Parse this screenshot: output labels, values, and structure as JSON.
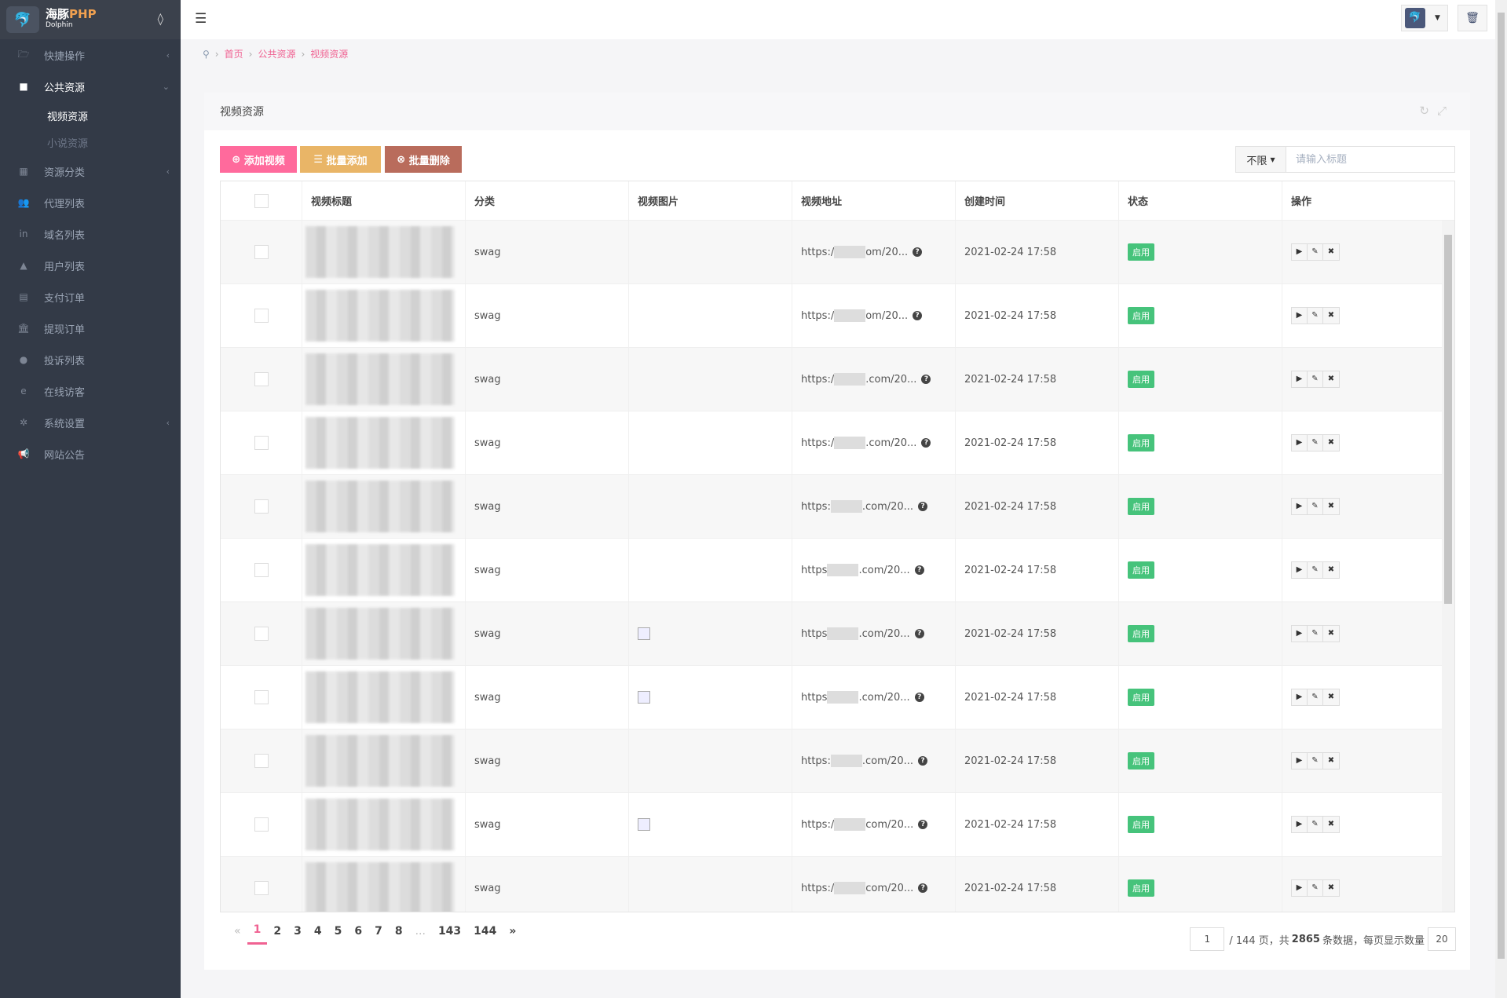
{
  "app": {
    "name": "海豚PHP",
    "sub": "Dolphin"
  },
  "sidebar": {
    "items": [
      {
        "label": "快捷操作",
        "icon": "folder-open-icon",
        "arrow": "‹"
      },
      {
        "label": "公共资源",
        "icon": "video-camera-icon",
        "arrow": "⌄",
        "open": true,
        "children": [
          {
            "label": "视频资源",
            "active": true
          },
          {
            "label": "小说资源"
          }
        ]
      },
      {
        "label": "资源分类",
        "icon": "grid-icon",
        "arrow": "‹"
      },
      {
        "label": "代理列表",
        "icon": "users-icon"
      },
      {
        "label": "域名列表",
        "icon": "linkedin-icon"
      },
      {
        "label": "用户列表",
        "icon": "user-icon"
      },
      {
        "label": "支付订单",
        "icon": "list-alt-icon"
      },
      {
        "label": "提现订单",
        "icon": "bank-icon"
      },
      {
        "label": "投诉列表",
        "icon": "exclamation-circle-icon"
      },
      {
        "label": "在线访客",
        "icon": "internet-explorer-icon"
      },
      {
        "label": "系统设置",
        "icon": "gear-icon",
        "arrow": "‹"
      },
      {
        "label": "网站公告",
        "icon": "bullhorn-icon"
      }
    ]
  },
  "breadcrumb": [
    "首页",
    "公共资源",
    "视频资源"
  ],
  "panel": {
    "title": "视频资源"
  },
  "toolbar": {
    "add": "添加视频",
    "batch_add": "批量添加",
    "batch_delete": "批量删除",
    "colors": {
      "add": "#ff6a9c",
      "batch_add": "#e9b567",
      "batch_delete": "#b96c5c"
    }
  },
  "filter": {
    "select": "不限",
    "placeholder": "请输入标题"
  },
  "table": {
    "headers": [
      "视频标题",
      "分类",
      "视频图片",
      "视频地址",
      "创建时间",
      "状态",
      "操作"
    ],
    "rows": [
      {
        "category": "swag",
        "image": false,
        "url_prefix": "https:/",
        "url_suffix": "om/20...",
        "created": "2021-02-24 17:58",
        "status": "启用"
      },
      {
        "category": "swag",
        "image": false,
        "url_prefix": "https:/",
        "url_suffix": "om/20...",
        "created": "2021-02-24 17:58",
        "status": "启用"
      },
      {
        "category": "swag",
        "image": false,
        "url_prefix": "https:/",
        "url_suffix": ".com/20...",
        "created": "2021-02-24 17:58",
        "status": "启用"
      },
      {
        "category": "swag",
        "image": false,
        "url_prefix": "https:/",
        "url_suffix": ".com/20...",
        "created": "2021-02-24 17:58",
        "status": "启用"
      },
      {
        "category": "swag",
        "image": false,
        "url_prefix": "https:",
        "url_suffix": ".com/20...",
        "created": "2021-02-24 17:58",
        "status": "启用"
      },
      {
        "category": "swag",
        "image": false,
        "url_prefix": "https",
        "url_suffix": ".com/20...",
        "created": "2021-02-24 17:58",
        "status": "启用"
      },
      {
        "category": "swag",
        "image": true,
        "url_prefix": "https",
        "url_suffix": ".com/20...",
        "created": "2021-02-24 17:58",
        "status": "启用"
      },
      {
        "category": "swag",
        "image": true,
        "url_prefix": "https",
        "url_suffix": ".com/20...",
        "created": "2021-02-24 17:58",
        "status": "启用"
      },
      {
        "category": "swag",
        "image": false,
        "url_prefix": "https:",
        "url_suffix": ".com/20...",
        "created": "2021-02-24 17:58",
        "status": "启用"
      },
      {
        "category": "swag",
        "image": true,
        "url_prefix": "https:/",
        "url_suffix": "com/20...",
        "created": "2021-02-24 17:58",
        "status": "启用"
      },
      {
        "category": "swag",
        "image": false,
        "url_prefix": "https:/",
        "url_suffix": "com/20...",
        "created": "2021-02-24 17:58",
        "status": "启用"
      }
    ]
  },
  "pagination": {
    "prev": "«",
    "pages": [
      "1",
      "2",
      "3",
      "4",
      "5",
      "6",
      "7",
      "8",
      "...",
      "143",
      "144"
    ],
    "current": "1",
    "next": "»",
    "goto": "1",
    "total_pages_text": "/ 144 页，共",
    "total_count": "2865",
    "count_suffix": "条数据，每页显示数量",
    "per_page": "20"
  }
}
